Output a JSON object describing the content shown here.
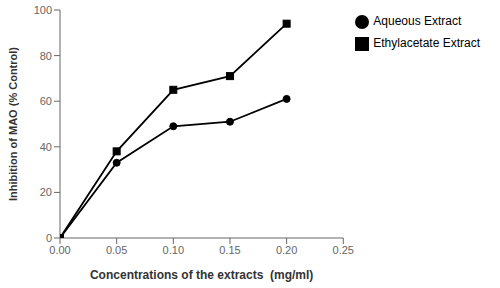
{
  "chart_data": {
    "type": "line",
    "x": [
      0.0,
      0.05,
      0.1,
      0.15,
      0.2
    ],
    "series": [
      {
        "name": "Ethylacetate Extract",
        "color": "#000000",
        "marker": "square",
        "values": [
          0,
          38,
          65,
          71,
          94
        ]
      },
      {
        "name": "Aqueous Extract",
        "color": "#000000",
        "marker": "circle",
        "values": [
          0,
          33,
          49,
          51,
          61
        ]
      }
    ],
    "x_label": "Concentrations of the extracts  (mg/ml)",
    "y_label": "Inhibition of MAO (% Control)",
    "xlim": [
      0.0,
      0.25
    ],
    "ylim": [
      0,
      100
    ],
    "xticks": [
      {
        "value": 0,
        "label": "0.00"
      },
      0.05,
      {
        "value": 0.1,
        "label": "0.10"
      },
      0.15,
      {
        "value": 0.2,
        "label": "0.20"
      },
      0.25
    ],
    "yticks": [
      0,
      20,
      40,
      60,
      80,
      100
    ],
    "grid": false,
    "legend": "upper right"
  }
}
